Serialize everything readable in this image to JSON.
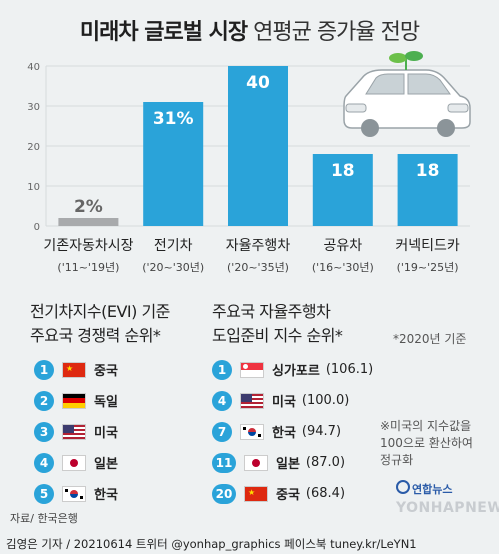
{
  "header": {
    "title_bold": "미래차 글로벌 시장",
    "title_light": "연평균 증가율 전망"
  },
  "chart_data": {
    "type": "bar",
    "title": "미래차 글로벌 시장 연평균 증가율 전망",
    "categories": [
      "기존자동차시장",
      "전기차",
      "자율주행차",
      "공유차",
      "커넥티드카"
    ],
    "periods": [
      "('11~'19년)",
      "('20~'30년)",
      "('20~'35년)",
      "('16~'30년)",
      "('19~'25년)"
    ],
    "values": [
      2,
      31,
      40,
      18,
      18
    ],
    "value_labels": [
      "2%",
      "31%",
      "40",
      "18",
      "18"
    ],
    "bar_colors": [
      "#a8aaac",
      "#2aa3d9",
      "#2aa3d9",
      "#2aa3d9",
      "#2aa3d9"
    ],
    "yticks": [
      0,
      10,
      20,
      30,
      40
    ],
    "ylim": [
      0,
      40
    ],
    "grid": true,
    "colors": {
      "accent": "#2aa3d9",
      "baseline": "#a8aaac",
      "grid": "#d6dadc"
    },
    "illustration": "car-with-sprout-icon"
  },
  "evi": {
    "heading_line1": "전기차지수(EVI) 기준",
    "heading_line2": "주요국 경쟁력 순위*",
    "items": [
      {
        "rank": "1",
        "country": "중국",
        "flag": "cn-flag-icon"
      },
      {
        "rank": "2",
        "country": "독일",
        "flag": "de-flag-icon"
      },
      {
        "rank": "3",
        "country": "미국",
        "flag": "us-flag-icon"
      },
      {
        "rank": "4",
        "country": "일본",
        "flag": "jp-flag-icon"
      },
      {
        "rank": "5",
        "country": "한국",
        "flag": "kr-flag-icon"
      }
    ]
  },
  "av": {
    "heading_line1": "주요국 자율주행차",
    "heading_line2": "도입준비 지수 순위*",
    "year_note": "*2020년 기준",
    "items": [
      {
        "rank": "1",
        "country": "싱가포르",
        "score": "(106.1)",
        "flag": "sg-flag-icon"
      },
      {
        "rank": "4",
        "country": "미국",
        "score": "(100.0)",
        "flag": "us-flag-icon"
      },
      {
        "rank": "7",
        "country": "한국",
        "score": "(94.7)",
        "flag": "kr-flag-icon"
      },
      {
        "rank": "11",
        "country": "일본",
        "score": "(87.0)",
        "flag": "jp-flag-icon"
      },
      {
        "rank": "20",
        "country": "중국",
        "score": "(68.4)",
        "flag": "cn-flag-icon"
      }
    ],
    "footnote_line1": "※미국의 지수값을",
    "footnote_line2": "100으로 환산하여",
    "footnote_line3": "정규화"
  },
  "source": "자료/ 한국은행",
  "footer": "김영은 기자 / 20210614   트위터 @yonhap_graphics  페이스북 tuney.kr/LeYN1",
  "logo": {
    "korean": "연합뉴스",
    "english": "YONHAPNEWS"
  }
}
